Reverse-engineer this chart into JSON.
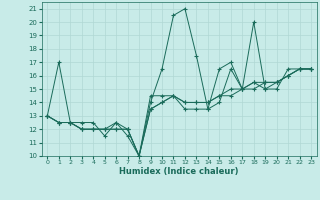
{
  "xlabel": "Humidex (Indice chaleur)",
  "bg_color": "#c8ebe8",
  "grid_color": "#b0d8d4",
  "line_color": "#1a6b5a",
  "xlim": [
    -0.5,
    23.5
  ],
  "ylim": [
    10,
    21.5
  ],
  "xticks": [
    0,
    1,
    2,
    3,
    4,
    5,
    6,
    7,
    8,
    9,
    10,
    11,
    12,
    13,
    14,
    15,
    16,
    17,
    18,
    19,
    20,
    21,
    22,
    23
  ],
  "yticks": [
    10,
    11,
    12,
    13,
    14,
    15,
    16,
    17,
    18,
    19,
    20,
    21
  ],
  "series": [
    {
      "x": [
        0,
        1,
        2,
        3,
        4,
        5,
        6,
        7,
        8,
        9,
        10,
        11,
        12,
        13,
        14,
        15,
        16,
        17,
        18,
        19,
        20,
        21,
        22,
        23
      ],
      "y": [
        13,
        17,
        12.5,
        12.5,
        12.5,
        11.5,
        12.5,
        11.5,
        10,
        14,
        16.5,
        20.5,
        21,
        17.5,
        13.5,
        16.5,
        17,
        15,
        20,
        15,
        15,
        16.5,
        16.5,
        16.5
      ]
    },
    {
      "x": [
        0,
        1,
        2,
        3,
        4,
        5,
        6,
        7,
        8,
        9,
        10,
        11,
        12,
        13,
        14,
        15,
        16,
        17,
        18,
        19,
        20,
        21,
        22,
        23
      ],
      "y": [
        13,
        12.5,
        12.5,
        12,
        12,
        12,
        12.5,
        12,
        10,
        14.5,
        14.5,
        14.5,
        13.5,
        13.5,
        13.5,
        14,
        16.5,
        15,
        15.5,
        15,
        15.5,
        16,
        16.5,
        16.5
      ]
    },
    {
      "x": [
        0,
        1,
        2,
        3,
        4,
        5,
        6,
        7,
        8,
        9,
        10,
        11,
        12,
        13,
        14,
        15,
        16,
        17,
        18,
        19,
        20,
        21,
        22,
        23
      ],
      "y": [
        13,
        12.5,
        12.5,
        12,
        12,
        12,
        12,
        12,
        10,
        13.5,
        14,
        14.5,
        14,
        14,
        14,
        14.5,
        14.5,
        15,
        15,
        15.5,
        15.5,
        16,
        16.5,
        16.5
      ]
    },
    {
      "x": [
        0,
        1,
        2,
        3,
        4,
        5,
        6,
        7,
        8,
        9,
        10,
        11,
        12,
        13,
        14,
        15,
        16,
        17,
        18,
        19,
        20,
        21,
        22,
        23
      ],
      "y": [
        13,
        12.5,
        12.5,
        12,
        12,
        12,
        12,
        12,
        10,
        13.5,
        14,
        14.5,
        14,
        14,
        14,
        14.5,
        15,
        15,
        15.5,
        15.5,
        15.5,
        16,
        16.5,
        16.5
      ]
    }
  ]
}
